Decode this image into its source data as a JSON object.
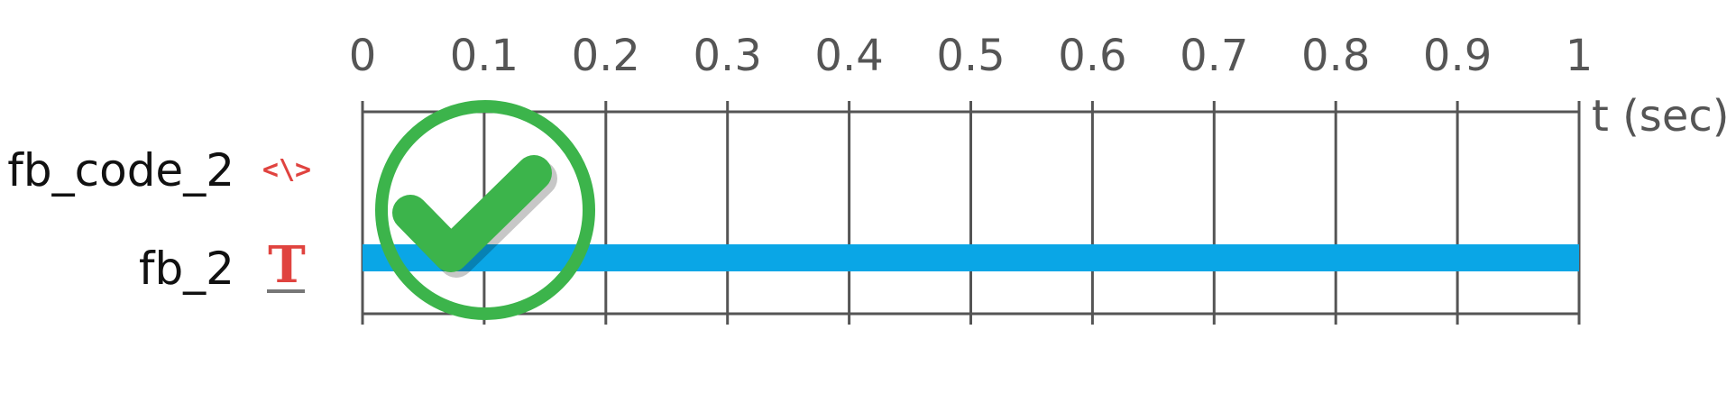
{
  "axis": {
    "ticks": [
      "0",
      "0.1",
      "0.2",
      "0.3",
      "0.4",
      "0.5",
      "0.6",
      "0.7",
      "0.8",
      "0.9",
      "1"
    ],
    "unit_label": "t (sec)",
    "min": 0,
    "max": 1
  },
  "rows": [
    {
      "label": "fb_code_2",
      "icon": "code-icon",
      "bar": null
    },
    {
      "label": "fb_2",
      "icon": "text-icon",
      "bar": {
        "start": 0,
        "end": 1
      }
    }
  ],
  "colors": {
    "bar": "#0aa6e6",
    "grid": "#555555",
    "icon": "#e0433f",
    "check": "#3cb44b"
  },
  "status": {
    "icon": "checkmark-icon"
  }
}
